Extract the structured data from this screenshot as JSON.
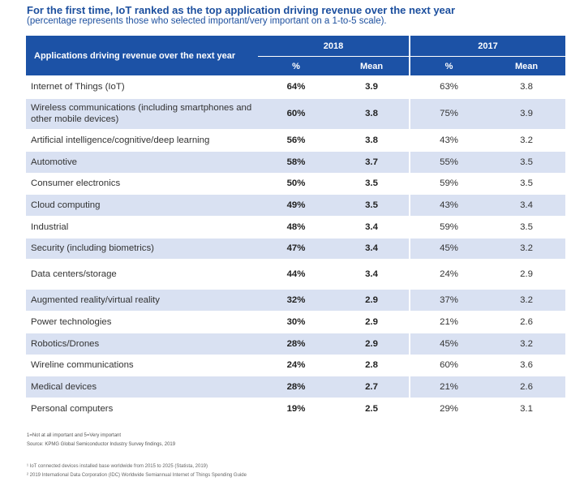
{
  "header": {
    "title": "For the first time, IoT ranked as the top application driving revenue over the next year",
    "subtitle": "(percentage represents those who selected important/very important on a 1-to-5 scale)."
  },
  "table": {
    "column_header": "Applications driving revenue over the next year",
    "year_a": "2018",
    "year_b": "2017",
    "pct_label": "%",
    "mean_label": "Mean",
    "rows": [
      {
        "label": "Internet of Things (IoT)",
        "pct2018": "64%",
        "mean2018": "3.9",
        "pct2017": "63%",
        "mean2017": "3.8"
      },
      {
        "label": "Wireless communications (including smartphones and other mobile devices)",
        "pct2018": "60%",
        "mean2018": "3.8",
        "pct2017": "75%",
        "mean2017": "3.9"
      },
      {
        "label": "Artificial intelligence/cognitive/deep learning",
        "pct2018": "56%",
        "mean2018": "3.8",
        "pct2017": "43%",
        "mean2017": "3.2"
      },
      {
        "label": "Automotive",
        "pct2018": "58%",
        "mean2018": "3.7",
        "pct2017": "55%",
        "mean2017": "3.5"
      },
      {
        "label": "Consumer electronics",
        "pct2018": "50%",
        "mean2018": "3.5",
        "pct2017": "59%",
        "mean2017": "3.5"
      },
      {
        "label": "Cloud computing",
        "pct2018": "49%",
        "mean2018": "3.5",
        "pct2017": "43%",
        "mean2017": "3.4"
      },
      {
        "label": "Industrial",
        "pct2018": "48%",
        "mean2018": "3.4",
        "pct2017": "59%",
        "mean2017": "3.5"
      },
      {
        "label": "Security (including biometrics)",
        "pct2018": "47%",
        "mean2018": "3.4",
        "pct2017": "45%",
        "mean2017": "3.2"
      },
      {
        "label": "Data centers/storage",
        "pct2018": "44%",
        "mean2018": "3.4",
        "pct2017": "24%",
        "mean2017": "2.9"
      },
      {
        "label": "Augmented reality/virtual reality",
        "pct2018": "32%",
        "mean2018": "2.9",
        "pct2017": "37%",
        "mean2017": "3.2"
      },
      {
        "label": "Power technologies",
        "pct2018": "30%",
        "mean2018": "2.9",
        "pct2017": "21%",
        "mean2017": "2.6"
      },
      {
        "label": "Robotics/Drones",
        "pct2018": "28%",
        "mean2018": "2.9",
        "pct2017": "45%",
        "mean2017": "3.2"
      },
      {
        "label": "Wireline communications",
        "pct2018": "24%",
        "mean2018": "2.8",
        "pct2017": "60%",
        "mean2017": "3.6"
      },
      {
        "label": "Medical devices",
        "pct2018": "28%",
        "mean2018": "2.7",
        "pct2017": "21%",
        "mean2017": "2.6"
      },
      {
        "label": "Personal computers",
        "pct2018": "19%",
        "mean2018": "2.5",
        "pct2017": "29%",
        "mean2017": "3.1"
      }
    ]
  },
  "notes": {
    "scale": "1=Not at all important and 5=Very important",
    "source": "Source: KPMG Global Semiconductor Industry Survey findings, 2019"
  },
  "footnotes": {
    "one": "¹ IoT connected devices installed base worldwide from 2015 to 2025 (Statista, 2019)",
    "two": "² 2019 International Data Corporation (IDC) Worldwide Semiannual Internet of Things Spending Guide"
  }
}
